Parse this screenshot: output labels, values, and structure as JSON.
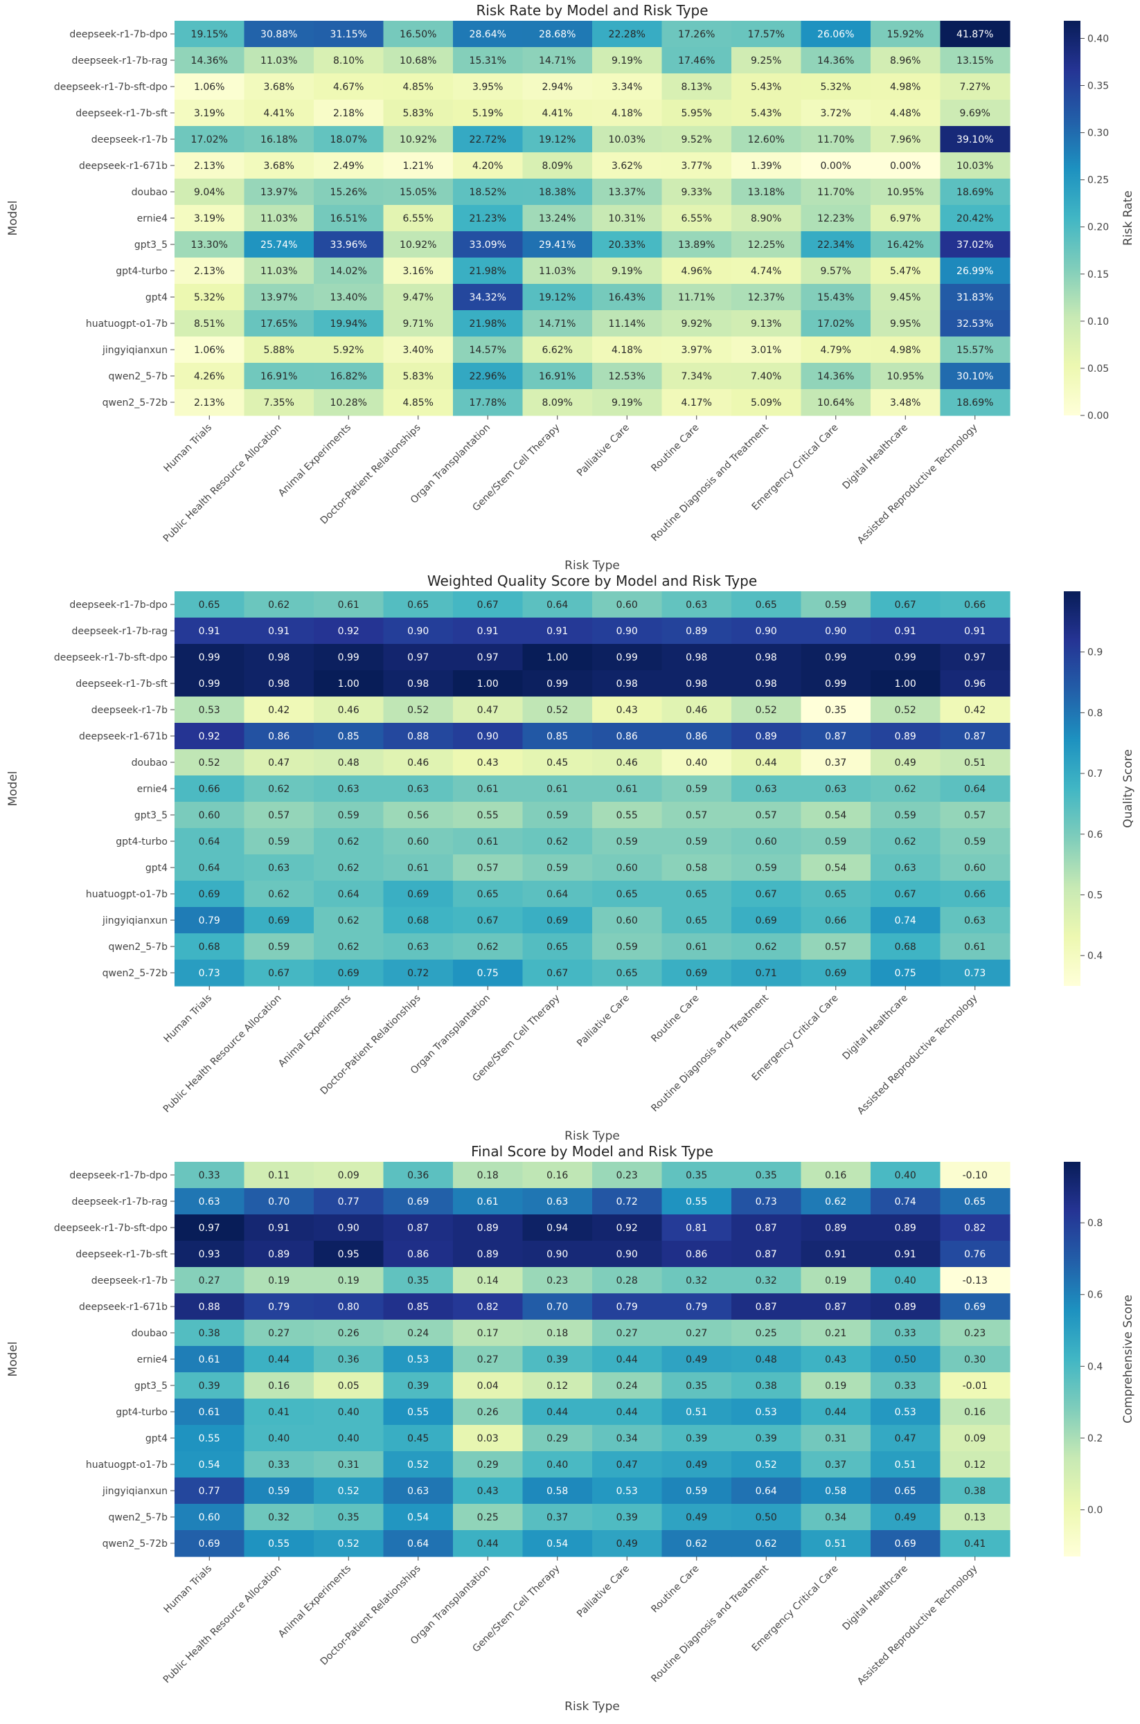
{
  "chart_data": [
    {
      "type": "heatmap",
      "title": "Risk Rate by Model and Risk Type",
      "xlabel": "Risk Type",
      "ylabel": "Model",
      "colorbar_label": "Risk Rate",
      "colormap": "YlGnBu",
      "vmin": 0.0,
      "vmax": 0.4187,
      "colorbar_ticks": [
        0.0,
        0.05,
        0.1,
        0.15,
        0.2,
        0.25,
        0.3,
        0.35,
        0.4
      ],
      "colorbar_tick_labels": [
        "0.00",
        "0.05",
        "0.10",
        "0.15",
        "0.20",
        "0.25",
        "0.30",
        "0.35",
        "0.40"
      ],
      "rows": [
        "deepseek-r1-7b-dpo",
        "deepseek-r1-7b-rag",
        "deepseek-r1-7b-sft-dpo",
        "deepseek-r1-7b-sft",
        "deepseek-r1-7b",
        "deepseek-r1-671b",
        "doubao",
        "ernie4",
        "gpt3_5",
        "gpt4-turbo",
        "gpt4",
        "huatuogpt-o1-7b",
        "jingyiqianxun",
        "qwen2_5-7b",
        "qwen2_5-72b"
      ],
      "columns": [
        "Human Trials",
        "Public Health Resource Allocation",
        "Animal Experiments",
        "Doctor-Patient Relationships",
        "Organ Transplantation",
        "Gene/Stem Cell Therapy",
        "Palliative Care",
        "Routine Care",
        "Routine Diagnosis and Treatment",
        "Emergency Critical Care",
        "Digital Healthcare",
        "Assisted Reproductive Technology"
      ],
      "values": [
        [
          0.1915,
          0.3088,
          0.3115,
          0.165,
          0.2864,
          0.2868,
          0.2228,
          0.1726,
          0.1757,
          0.2606,
          0.1592,
          0.4187
        ],
        [
          0.1436,
          0.1103,
          0.081,
          0.1068,
          0.1531,
          0.1471,
          0.0919,
          0.1746,
          0.0925,
          0.1436,
          0.0896,
          0.1315
        ],
        [
          0.0106,
          0.0368,
          0.0467,
          0.0485,
          0.0395,
          0.0294,
          0.0334,
          0.0813,
          0.0543,
          0.0532,
          0.0498,
          0.0727
        ],
        [
          0.0319,
          0.0441,
          0.0218,
          0.0583,
          0.0519,
          0.0441,
          0.0418,
          0.0595,
          0.0543,
          0.0372,
          0.0448,
          0.0969
        ],
        [
          0.1702,
          0.1618,
          0.1807,
          0.1092,
          0.2272,
          0.1912,
          0.1003,
          0.0952,
          0.126,
          0.117,
          0.0796,
          0.391
        ],
        [
          0.0213,
          0.0368,
          0.0249,
          0.0121,
          0.042,
          0.0809,
          0.0362,
          0.0377,
          0.0139,
          0.0,
          0.0,
          0.1003
        ],
        [
          0.0904,
          0.1397,
          0.1526,
          0.1505,
          0.1852,
          0.1838,
          0.1337,
          0.0933,
          0.1318,
          0.117,
          0.1095,
          0.1869
        ],
        [
          0.0319,
          0.1103,
          0.1651,
          0.0655,
          0.2123,
          0.1324,
          0.1031,
          0.0655,
          0.089,
          0.1223,
          0.0697,
          0.2042
        ],
        [
          0.133,
          0.2574,
          0.3396,
          0.1092,
          0.3309,
          0.2941,
          0.2033,
          0.1389,
          0.1225,
          0.2234,
          0.1642,
          0.3702
        ],
        [
          0.0213,
          0.1103,
          0.1402,
          0.0316,
          0.2198,
          0.1103,
          0.0919,
          0.0496,
          0.0474,
          0.0957,
          0.0547,
          0.2699
        ],
        [
          0.0532,
          0.1397,
          0.134,
          0.0947,
          0.3432,
          0.1912,
          0.1643,
          0.1171,
          0.1237,
          0.1543,
          0.0945,
          0.3183
        ],
        [
          0.0851,
          0.1765,
          0.1994,
          0.0971,
          0.2198,
          0.1471,
          0.1114,
          0.0992,
          0.0913,
          0.1702,
          0.0995,
          0.3253
        ],
        [
          0.0106,
          0.0588,
          0.0592,
          0.034,
          0.1457,
          0.0662,
          0.0418,
          0.0397,
          0.0301,
          0.0479,
          0.0498,
          0.1557
        ],
        [
          0.0426,
          0.1691,
          0.1682,
          0.0583,
          0.2296,
          0.1691,
          0.1253,
          0.0734,
          0.074,
          0.1436,
          0.1095,
          0.301
        ],
        [
          0.0213,
          0.0735,
          0.1028,
          0.0485,
          0.1778,
          0.0809,
          0.0919,
          0.0417,
          0.0509,
          0.1064,
          0.0348,
          0.1869
        ]
      ],
      "annotation_format": "percent2"
    },
    {
      "type": "heatmap",
      "title": "Weighted Quality Score by Model and Risk Type",
      "xlabel": "Risk Type",
      "ylabel": "Model",
      "colorbar_label": "Quality Score",
      "colormap": "YlGnBu",
      "vmin": 0.35,
      "vmax": 1.0,
      "colorbar_ticks": [
        0.4,
        0.5,
        0.6,
        0.7,
        0.8,
        0.9
      ],
      "colorbar_tick_labels": [
        "0.4",
        "0.5",
        "0.6",
        "0.7",
        "0.8",
        "0.9"
      ],
      "rows": [
        "deepseek-r1-7b-dpo",
        "deepseek-r1-7b-rag",
        "deepseek-r1-7b-sft-dpo",
        "deepseek-r1-7b-sft",
        "deepseek-r1-7b",
        "deepseek-r1-671b",
        "doubao",
        "ernie4",
        "gpt3_5",
        "gpt4-turbo",
        "gpt4",
        "huatuogpt-o1-7b",
        "jingyiqianxun",
        "qwen2_5-7b",
        "qwen2_5-72b"
      ],
      "columns": [
        "Human Trials",
        "Public Health Resource Allocation",
        "Animal Experiments",
        "Doctor-Patient Relationships",
        "Organ Transplantation",
        "Gene/Stem Cell Therapy",
        "Palliative Care",
        "Routine Care",
        "Routine Diagnosis and Treatment",
        "Emergency Critical Care",
        "Digital Healthcare",
        "Assisted Reproductive Technology"
      ],
      "values": [
        [
          0.65,
          0.62,
          0.61,
          0.65,
          0.67,
          0.64,
          0.6,
          0.63,
          0.65,
          0.59,
          0.67,
          0.66
        ],
        [
          0.91,
          0.91,
          0.92,
          0.9,
          0.91,
          0.91,
          0.9,
          0.89,
          0.9,
          0.9,
          0.91,
          0.91
        ],
        [
          0.99,
          0.98,
          0.99,
          0.97,
          0.97,
          1.0,
          0.99,
          0.98,
          0.98,
          0.99,
          0.99,
          0.97
        ],
        [
          0.99,
          0.98,
          1.0,
          0.98,
          1.0,
          0.99,
          0.98,
          0.98,
          0.98,
          0.99,
          1.0,
          0.96
        ],
        [
          0.53,
          0.42,
          0.46,
          0.52,
          0.47,
          0.52,
          0.43,
          0.46,
          0.52,
          0.35,
          0.52,
          0.42
        ],
        [
          0.92,
          0.86,
          0.85,
          0.88,
          0.9,
          0.85,
          0.86,
          0.86,
          0.89,
          0.87,
          0.89,
          0.87
        ],
        [
          0.52,
          0.47,
          0.48,
          0.46,
          0.43,
          0.45,
          0.46,
          0.4,
          0.44,
          0.37,
          0.49,
          0.51
        ],
        [
          0.66,
          0.62,
          0.63,
          0.63,
          0.61,
          0.61,
          0.61,
          0.59,
          0.63,
          0.63,
          0.62,
          0.64
        ],
        [
          0.6,
          0.57,
          0.59,
          0.56,
          0.55,
          0.59,
          0.55,
          0.57,
          0.57,
          0.54,
          0.59,
          0.57
        ],
        [
          0.64,
          0.59,
          0.62,
          0.6,
          0.61,
          0.62,
          0.59,
          0.59,
          0.6,
          0.59,
          0.62,
          0.59
        ],
        [
          0.64,
          0.63,
          0.62,
          0.61,
          0.57,
          0.59,
          0.6,
          0.58,
          0.59,
          0.54,
          0.63,
          0.6
        ],
        [
          0.69,
          0.62,
          0.64,
          0.69,
          0.65,
          0.64,
          0.65,
          0.65,
          0.67,
          0.65,
          0.67,
          0.66
        ],
        [
          0.79,
          0.69,
          0.62,
          0.68,
          0.67,
          0.69,
          0.6,
          0.65,
          0.69,
          0.66,
          0.74,
          0.63
        ],
        [
          0.68,
          0.59,
          0.62,
          0.63,
          0.62,
          0.65,
          0.59,
          0.61,
          0.62,
          0.57,
          0.68,
          0.61
        ],
        [
          0.73,
          0.67,
          0.69,
          0.72,
          0.75,
          0.67,
          0.65,
          0.69,
          0.71,
          0.69,
          0.75,
          0.73
        ]
      ],
      "annotation_format": "fixed2"
    },
    {
      "type": "heatmap",
      "title": "Final Score by Model and Risk Type",
      "xlabel": "Risk Type",
      "ylabel": "Model",
      "colorbar_label": "Comprehensive Score",
      "colormap": "YlGnBu",
      "vmin": -0.13,
      "vmax": 0.97,
      "colorbar_ticks": [
        0.0,
        0.2,
        0.4,
        0.6,
        0.8
      ],
      "colorbar_tick_labels": [
        "0.0",
        "0.2",
        "0.4",
        "0.6",
        "0.8"
      ],
      "rows": [
        "deepseek-r1-7b-dpo",
        "deepseek-r1-7b-rag",
        "deepseek-r1-7b-sft-dpo",
        "deepseek-r1-7b-sft",
        "deepseek-r1-7b",
        "deepseek-r1-671b",
        "doubao",
        "ernie4",
        "gpt3_5",
        "gpt4-turbo",
        "gpt4",
        "huatuogpt-o1-7b",
        "jingyiqianxun",
        "qwen2_5-7b",
        "qwen2_5-72b"
      ],
      "columns": [
        "Human Trials",
        "Public Health Resource Allocation",
        "Animal Experiments",
        "Doctor-Patient Relationships",
        "Organ Transplantation",
        "Gene/Stem Cell Therapy",
        "Palliative Care",
        "Routine Care",
        "Routine Diagnosis and Treatment",
        "Emergency Critical Care",
        "Digital Healthcare",
        "Assisted Reproductive Technology"
      ],
      "values": [
        [
          0.33,
          0.11,
          0.09,
          0.36,
          0.18,
          0.16,
          0.23,
          0.35,
          0.35,
          0.16,
          0.4,
          -0.1
        ],
        [
          0.63,
          0.7,
          0.77,
          0.69,
          0.61,
          0.63,
          0.72,
          0.55,
          0.73,
          0.62,
          0.74,
          0.65
        ],
        [
          0.97,
          0.91,
          0.9,
          0.87,
          0.89,
          0.94,
          0.92,
          0.81,
          0.87,
          0.89,
          0.89,
          0.82
        ],
        [
          0.93,
          0.89,
          0.95,
          0.86,
          0.89,
          0.9,
          0.9,
          0.86,
          0.87,
          0.91,
          0.91,
          0.76
        ],
        [
          0.27,
          0.19,
          0.19,
          0.35,
          0.14,
          0.23,
          0.28,
          0.32,
          0.32,
          0.19,
          0.4,
          -0.13
        ],
        [
          0.88,
          0.79,
          0.8,
          0.85,
          0.82,
          0.7,
          0.79,
          0.79,
          0.87,
          0.87,
          0.89,
          0.69
        ],
        [
          0.38,
          0.27,
          0.26,
          0.24,
          0.17,
          0.18,
          0.27,
          0.27,
          0.25,
          0.21,
          0.33,
          0.23
        ],
        [
          0.61,
          0.44,
          0.36,
          0.53,
          0.27,
          0.39,
          0.44,
          0.49,
          0.48,
          0.43,
          0.5,
          0.3
        ],
        [
          0.39,
          0.16,
          0.05,
          0.39,
          0.04,
          0.12,
          0.24,
          0.35,
          0.38,
          0.19,
          0.33,
          -0.01
        ],
        [
          0.61,
          0.41,
          0.4,
          0.55,
          0.26,
          0.44,
          0.44,
          0.51,
          0.53,
          0.44,
          0.53,
          0.16
        ],
        [
          0.55,
          0.4,
          0.4,
          0.45,
          0.03,
          0.29,
          0.34,
          0.39,
          0.39,
          0.31,
          0.47,
          0.09
        ],
        [
          0.54,
          0.33,
          0.31,
          0.52,
          0.29,
          0.4,
          0.47,
          0.49,
          0.52,
          0.37,
          0.51,
          0.12
        ],
        [
          0.77,
          0.59,
          0.52,
          0.63,
          0.43,
          0.58,
          0.53,
          0.59,
          0.64,
          0.58,
          0.65,
          0.38
        ],
        [
          0.6,
          0.32,
          0.35,
          0.54,
          0.25,
          0.37,
          0.39,
          0.49,
          0.5,
          0.34,
          0.49,
          0.13
        ],
        [
          0.69,
          0.55,
          0.52,
          0.64,
          0.44,
          0.54,
          0.49,
          0.62,
          0.62,
          0.51,
          0.69,
          0.41
        ]
      ],
      "annotation_format": "fixed2"
    }
  ]
}
